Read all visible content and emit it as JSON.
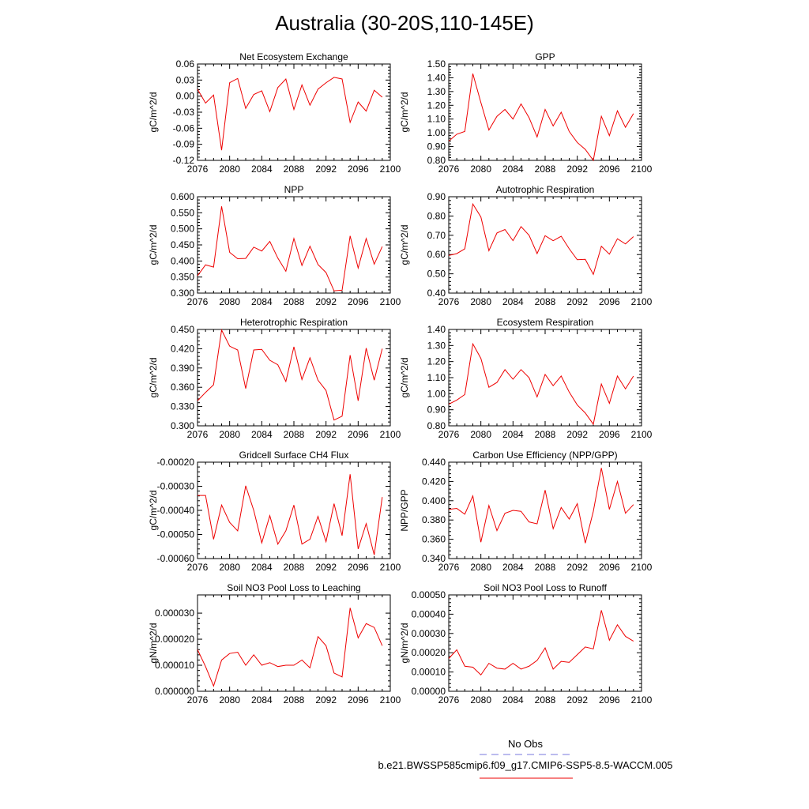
{
  "title": "Australia (30-20S,110-145E)",
  "legend": {
    "obs_label": "No Obs",
    "obs_color": "#7777dd",
    "model_label": "b.e21.BWSSP585cmip6.f09_g17.CMIP6-SSP5-8.5-WACCM.005",
    "model_color": "#ee0000"
  },
  "chart_data": [
    {
      "type": "line",
      "title": "Net Ecosystem Exchange",
      "ylabel": "gC/m^2/d",
      "ylim": [
        -0.12,
        0.06
      ],
      "yticks": [
        "-0.12",
        "-0.09",
        "-0.06",
        "-0.03",
        "0.00",
        "0.03",
        "0.06"
      ],
      "xlim": [
        2076,
        2100
      ],
      "xticks": [
        "2076",
        "2080",
        "2084",
        "2088",
        "2092",
        "2096",
        "2100"
      ],
      "x": [
        2076,
        2077,
        2078,
        2079,
        2080,
        2081,
        2082,
        2083,
        2084,
        2085,
        2086,
        2087,
        2088,
        2089,
        2090,
        2091,
        2092,
        2093,
        2094,
        2095,
        2096,
        2097,
        2098,
        2099
      ],
      "series": [
        {
          "values": [
            0.013,
            -0.013,
            0.002,
            -0.101,
            0.025,
            0.033,
            -0.023,
            0.003,
            0.01,
            -0.029,
            0.016,
            0.032,
            -0.025,
            0.021,
            -0.017,
            0.013,
            0.025,
            0.035,
            0.032,
            -0.049,
            -0.011,
            -0.028,
            0.011,
            -0.002
          ]
        }
      ]
    },
    {
      "type": "line",
      "title": "GPP",
      "ylabel": "gC/m^2/d",
      "ylim": [
        0.8,
        1.5
      ],
      "yticks": [
        "0.80",
        "0.90",
        "1.00",
        "1.10",
        "1.20",
        "1.30",
        "1.40",
        "1.50"
      ],
      "xlim": [
        2076,
        2100
      ],
      "xticks": [
        "2076",
        "2080",
        "2084",
        "2088",
        "2092",
        "2096",
        "2100"
      ],
      "x": [
        2076,
        2077,
        2078,
        2079,
        2080,
        2081,
        2082,
        2083,
        2084,
        2085,
        2086,
        2087,
        2088,
        2089,
        2090,
        2091,
        2092,
        2093,
        2094,
        2095,
        2096,
        2097,
        2098,
        2099
      ],
      "series": [
        {
          "values": [
            0.94,
            0.99,
            1.01,
            1.43,
            1.22,
            1.02,
            1.12,
            1.17,
            1.1,
            1.21,
            1.11,
            0.97,
            1.17,
            1.05,
            1.15,
            1.01,
            0.93,
            0.88,
            0.8,
            1.12,
            0.98,
            1.16,
            1.04,
            1.14
          ]
        }
      ]
    },
    {
      "type": "line",
      "title": "NPP",
      "ylabel": "gC/m^2/d",
      "ylim": [
        0.3,
        0.6
      ],
      "yticks": [
        "0.300",
        "0.350",
        "0.400",
        "0.450",
        "0.500",
        "0.550",
        "0.600"
      ],
      "xlim": [
        2076,
        2100
      ],
      "xticks": [
        "2076",
        "2080",
        "2084",
        "2088",
        "2092",
        "2096",
        "2100"
      ],
      "x": [
        2076,
        2077,
        2078,
        2079,
        2080,
        2081,
        2082,
        2083,
        2084,
        2085,
        2086,
        2087,
        2088,
        2089,
        2090,
        2091,
        2092,
        2093,
        2094,
        2095,
        2096,
        2097,
        2098,
        2099
      ],
      "series": [
        {
          "values": [
            0.354,
            0.388,
            0.381,
            0.57,
            0.427,
            0.407,
            0.408,
            0.443,
            0.431,
            0.461,
            0.409,
            0.368,
            0.47,
            0.386,
            0.446,
            0.389,
            0.364,
            0.307,
            0.309,
            0.478,
            0.378,
            0.47,
            0.39,
            0.445
          ]
        }
      ]
    },
    {
      "type": "line",
      "title": "Autotrophic Respiration",
      "ylabel": "gC/m^2/d",
      "ylim": [
        0.4,
        0.9
      ],
      "yticks": [
        "0.40",
        "0.50",
        "0.60",
        "0.70",
        "0.80",
        "0.90"
      ],
      "xlim": [
        2076,
        2100
      ],
      "xticks": [
        "2076",
        "2080",
        "2084",
        "2088",
        "2092",
        "2096",
        "2100"
      ],
      "x": [
        2076,
        2077,
        2078,
        2079,
        2080,
        2081,
        2082,
        2083,
        2084,
        2085,
        2086,
        2087,
        2088,
        2089,
        2090,
        2091,
        2092,
        2093,
        2094,
        2095,
        2096,
        2097,
        2098,
        2099
      ],
      "series": [
        {
          "values": [
            0.595,
            0.605,
            0.63,
            0.862,
            0.795,
            0.62,
            0.712,
            0.73,
            0.672,
            0.745,
            0.7,
            0.605,
            0.698,
            0.672,
            0.695,
            0.63,
            0.573,
            0.575,
            0.497,
            0.643,
            0.602,
            0.682,
            0.655,
            0.693
          ]
        }
      ]
    },
    {
      "type": "line",
      "title": "Heterotrophic Respiration",
      "ylabel": "gC/m^2/d",
      "ylim": [
        0.3,
        0.45
      ],
      "yticks": [
        "0.300",
        "0.330",
        "0.360",
        "0.390",
        "0.420",
        "0.450"
      ],
      "xlim": [
        2076,
        2100
      ],
      "xticks": [
        "2076",
        "2080",
        "2084",
        "2088",
        "2092",
        "2096",
        "2100"
      ],
      "x": [
        2076,
        2077,
        2078,
        2079,
        2080,
        2081,
        2082,
        2083,
        2084,
        2085,
        2086,
        2087,
        2088,
        2089,
        2090,
        2091,
        2092,
        2093,
        2094,
        2095,
        2096,
        2097,
        2098,
        2099
      ],
      "series": [
        {
          "values": [
            0.339,
            0.352,
            0.364,
            0.449,
            0.424,
            0.418,
            0.358,
            0.418,
            0.419,
            0.402,
            0.395,
            0.369,
            0.423,
            0.372,
            0.406,
            0.371,
            0.355,
            0.309,
            0.315,
            0.41,
            0.339,
            0.421,
            0.371,
            0.42
          ]
        }
      ]
    },
    {
      "type": "line",
      "title": "Ecosystem Respiration",
      "ylabel": "gC/m^2/d",
      "ylim": [
        0.8,
        1.4
      ],
      "yticks": [
        "0.80",
        "0.90",
        "1.00",
        "1.10",
        "1.20",
        "1.30",
        "1.40"
      ],
      "xlim": [
        2076,
        2100
      ],
      "xticks": [
        "2076",
        "2080",
        "2084",
        "2088",
        "2092",
        "2096",
        "2100"
      ],
      "x": [
        2076,
        2077,
        2078,
        2079,
        2080,
        2081,
        2082,
        2083,
        2084,
        2085,
        2086,
        2087,
        2088,
        2089,
        2090,
        2091,
        2092,
        2093,
        2094,
        2095,
        2096,
        2097,
        2098,
        2099
      ],
      "series": [
        {
          "values": [
            0.935,
            0.96,
            0.995,
            1.31,
            1.22,
            1.04,
            1.07,
            1.15,
            1.09,
            1.15,
            1.1,
            0.98,
            1.12,
            1.05,
            1.11,
            1.01,
            0.93,
            0.88,
            0.81,
            1.06,
            0.94,
            1.11,
            1.03,
            1.11
          ]
        }
      ]
    },
    {
      "type": "line",
      "title": "Gridcell Surface CH4 Flux",
      "ylabel": "gC/m^2/d",
      "ylim": [
        -0.0006,
        -0.0002
      ],
      "yticks": [
        "-0.00060",
        "-0.00050",
        "-0.00040",
        "-0.00030",
        "-0.00020"
      ],
      "xlim": [
        2076,
        2100
      ],
      "xticks": [
        "2076",
        "2080",
        "2084",
        "2088",
        "2092",
        "2096",
        "2100"
      ],
      "x": [
        2076,
        2077,
        2078,
        2079,
        2080,
        2081,
        2082,
        2083,
        2084,
        2085,
        2086,
        2087,
        2088,
        2089,
        2090,
        2091,
        2092,
        2093,
        2094,
        2095,
        2096,
        2097,
        2098,
        2099
      ],
      "series": [
        {
          "values": [
            -0.000338,
            -0.000338,
            -0.00052,
            -0.000378,
            -0.00045,
            -0.000485,
            -0.000298,
            -0.0004,
            -0.000535,
            -0.000422,
            -0.00054,
            -0.000485,
            -0.000378,
            -0.00054,
            -0.00052,
            -0.000425,
            -0.00053,
            -0.000372,
            -0.000505,
            -0.00025,
            -0.00056,
            -0.000455,
            -0.000585,
            -0.000345
          ]
        }
      ]
    },
    {
      "type": "line",
      "title": "Carbon Use Efficiency (NPP/GPP)",
      "ylabel": "NPP/GPP",
      "ylim": [
        0.34,
        0.44
      ],
      "yticks": [
        "0.340",
        "0.360",
        "0.380",
        "0.400",
        "0.420",
        "0.440"
      ],
      "xlim": [
        2076,
        2100
      ],
      "xticks": [
        "2076",
        "2080",
        "2084",
        "2088",
        "2092",
        "2096",
        "2100"
      ],
      "x": [
        2076,
        2077,
        2078,
        2079,
        2080,
        2081,
        2082,
        2083,
        2084,
        2085,
        2086,
        2087,
        2088,
        2089,
        2090,
        2091,
        2092,
        2093,
        2094,
        2095,
        2096,
        2097,
        2098,
        2099
      ],
      "series": [
        {
          "values": [
            0.391,
            0.392,
            0.386,
            0.405,
            0.357,
            0.395,
            0.369,
            0.387,
            0.39,
            0.389,
            0.378,
            0.376,
            0.411,
            0.371,
            0.393,
            0.381,
            0.397,
            0.356,
            0.389,
            0.434,
            0.391,
            0.42,
            0.387,
            0.396
          ]
        }
      ]
    },
    {
      "type": "line",
      "title": "Soil NO3 Pool Loss to Leaching",
      "ylabel": "gN/m^2/d",
      "ylim": [
        0.0,
        3.7e-05
      ],
      "yticks": [
        "0.000000",
        "0.000010",
        "0.000020",
        "0.000030"
      ],
      "ytick_values": [
        0.0,
        1e-05,
        2e-05,
        3e-05
      ],
      "xlim": [
        2076,
        2100
      ],
      "xticks": [
        "2076",
        "2080",
        "2084",
        "2088",
        "2092",
        "2096",
        "2100"
      ],
      "x": [
        2076,
        2077,
        2078,
        2079,
        2080,
        2081,
        2082,
        2083,
        2084,
        2085,
        2086,
        2087,
        2088,
        2089,
        2090,
        2091,
        2092,
        2093,
        2094,
        2095,
        2096,
        2097,
        2098,
        2099
      ],
      "series": [
        {
          "values": [
            1.6e-05,
            9.5e-06,
            2e-06,
            1.2e-05,
            1.45e-05,
            1.5e-05,
            1e-05,
            1.4e-05,
            1e-05,
            1.1e-05,
            9.5e-06,
            1e-05,
            1e-05,
            1.2e-05,
            9e-06,
            2.1e-05,
            1.75e-05,
            7e-06,
            5.5e-06,
            3.2e-05,
            2.05e-05,
            2.6e-05,
            2.45e-05,
            1.75e-05
          ]
        }
      ]
    },
    {
      "type": "line",
      "title": "Soil NO3 Pool Loss to Runoff",
      "ylabel": "gN/m^2/d",
      "ylim": [
        0.0,
        0.0005
      ],
      "yticks": [
        "0.00000",
        "0.00010",
        "0.00020",
        "0.00030",
        "0.00040",
        "0.00050"
      ],
      "xlim": [
        2076,
        2100
      ],
      "xticks": [
        "2076",
        "2080",
        "2084",
        "2088",
        "2092",
        "2096",
        "2100"
      ],
      "x": [
        2076,
        2077,
        2078,
        2079,
        2080,
        2081,
        2082,
        2083,
        2084,
        2085,
        2086,
        2087,
        2088,
        2089,
        2090,
        2091,
        2092,
        2093,
        2094,
        2095,
        2096,
        2097,
        2098,
        2099
      ],
      "series": [
        {
          "values": [
            0.00017,
            0.000215,
            0.00013,
            0.000125,
            8.5e-05,
            0.000145,
            0.00012,
            0.000115,
            0.000145,
            0.000115,
            0.00013,
            0.00016,
            0.000225,
            0.000115,
            0.000155,
            0.00015,
            0.00019,
            0.00023,
            0.00022,
            0.00042,
            0.000265,
            0.000345,
            0.000285,
            0.00026
          ]
        }
      ]
    }
  ]
}
